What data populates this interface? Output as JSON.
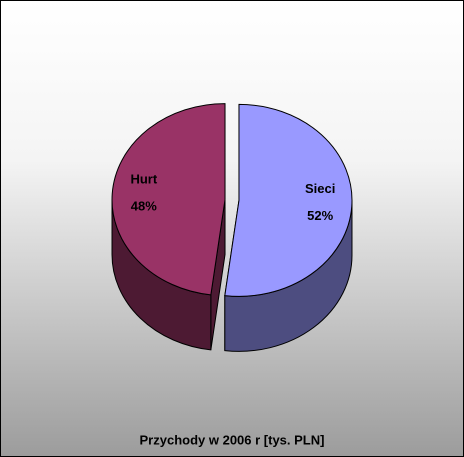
{
  "chart_data": {
    "type": "pie",
    "title": "Przychody w 2006 r [tys. PLN]",
    "categories": [
      "Sieci",
      "Hurt"
    ],
    "values": [
      52,
      48
    ],
    "value_labels": [
      "52%",
      "48%"
    ],
    "colors": [
      "#9999ff",
      "#993366"
    ]
  }
}
